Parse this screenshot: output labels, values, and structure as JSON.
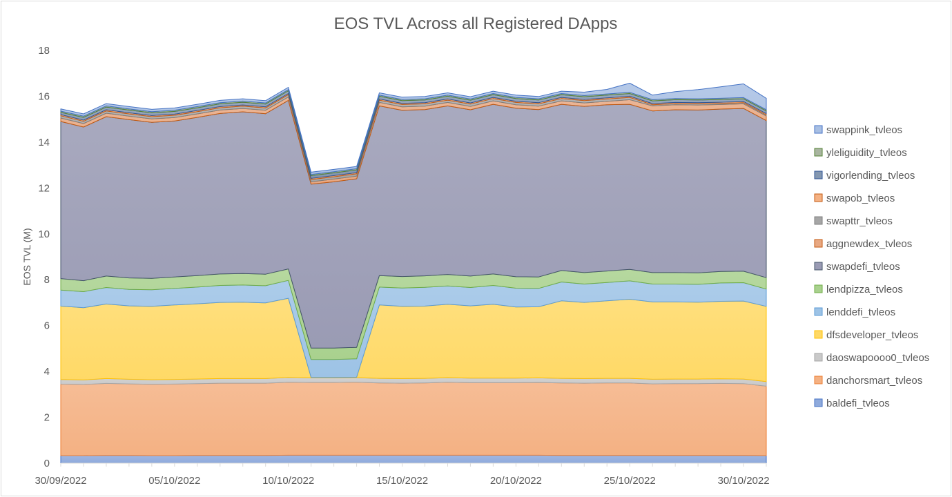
{
  "chart_data": {
    "type": "area",
    "stacked": true,
    "title": "EOS TVL Across all Registered DApps",
    "xlabel": "",
    "ylabel": "EOS TVL (M)",
    "ylim": [
      0,
      18
    ],
    "yticks": [
      "0",
      "2",
      "4",
      "6",
      "8",
      "10",
      "12",
      "14",
      "16",
      "18"
    ],
    "x": [
      "30/09/2022",
      "01/10/2022",
      "02/10/2022",
      "03/10/2022",
      "04/10/2022",
      "05/10/2022",
      "06/10/2022",
      "07/10/2022",
      "08/10/2022",
      "09/10/2022",
      "10/10/2022",
      "11/10/2022",
      "12/10/2022",
      "13/10/2022",
      "14/10/2022",
      "15/10/2022",
      "16/10/2022",
      "17/10/2022",
      "18/10/2022",
      "19/10/2022",
      "20/10/2022",
      "21/10/2022",
      "22/10/2022",
      "23/10/2022",
      "24/10/2022",
      "25/10/2022",
      "26/10/2022",
      "27/10/2022",
      "28/10/2022",
      "29/10/2022",
      "30/10/2022",
      "31/10/2022"
    ],
    "xtick_labels": [
      "30/09/2022",
      "05/10/2022",
      "10/10/2022",
      "15/10/2022",
      "20/10/2022",
      "25/10/2022",
      "30/10/2022"
    ],
    "xtick_indices": [
      0,
      5,
      10,
      15,
      20,
      25,
      30
    ],
    "grid": false,
    "legend_position": "right",
    "series": [
      {
        "name": "baldefi_tvleos",
        "color": "#8faadc",
        "stroke": "#4472c4",
        "values": [
          0.33,
          0.33,
          0.34,
          0.34,
          0.33,
          0.33,
          0.34,
          0.34,
          0.34,
          0.34,
          0.35,
          0.35,
          0.35,
          0.35,
          0.35,
          0.35,
          0.35,
          0.35,
          0.35,
          0.35,
          0.35,
          0.35,
          0.34,
          0.34,
          0.34,
          0.34,
          0.34,
          0.34,
          0.34,
          0.34,
          0.34,
          0.33
        ]
      },
      {
        "name": "danchorsmart_tvleos",
        "color": "#f4b183",
        "stroke": "#ed7d31",
        "values": [
          3.12,
          3.1,
          3.14,
          3.12,
          3.11,
          3.12,
          3.13,
          3.15,
          3.15,
          3.15,
          3.18,
          3.17,
          3.17,
          3.18,
          3.15,
          3.14,
          3.15,
          3.18,
          3.16,
          3.16,
          3.16,
          3.17,
          3.16,
          3.15,
          3.16,
          3.16,
          3.12,
          3.13,
          3.13,
          3.14,
          3.13,
          3.03
        ]
      },
      {
        "name": "daoswapoooo0_tvleos",
        "color": "#c9c9c9",
        "stroke": "#a5a5a5",
        "values": [
          0.2,
          0.2,
          0.21,
          0.2,
          0.2,
          0.2,
          0.2,
          0.2,
          0.2,
          0.2,
          0.21,
          0.2,
          0.2,
          0.2,
          0.2,
          0.2,
          0.2,
          0.2,
          0.2,
          0.2,
          0.2,
          0.2,
          0.2,
          0.2,
          0.2,
          0.2,
          0.2,
          0.2,
          0.2,
          0.2,
          0.2,
          0.2
        ]
      },
      {
        "name": "dfsdeveloper_tvleos",
        "color": "#ffd966",
        "stroke": "#ffc000",
        "values": [
          3.2,
          3.15,
          3.25,
          3.2,
          3.2,
          3.25,
          3.28,
          3.32,
          3.33,
          3.3,
          3.45,
          0.02,
          0.02,
          0.02,
          3.2,
          3.15,
          3.15,
          3.2,
          3.15,
          3.22,
          3.1,
          3.1,
          3.38,
          3.32,
          3.38,
          3.45,
          3.37,
          3.36,
          3.35,
          3.38,
          3.4,
          3.28
        ]
      },
      {
        "name": "lenddefi_tvleos",
        "color": "#9dc3e6",
        "stroke": "#5b9bd5",
        "values": [
          0.7,
          0.7,
          0.72,
          0.72,
          0.72,
          0.72,
          0.73,
          0.74,
          0.75,
          0.75,
          0.78,
          0.78,
          0.78,
          0.8,
          0.78,
          0.8,
          0.82,
          0.8,
          0.8,
          0.82,
          0.82,
          0.8,
          0.82,
          0.8,
          0.8,
          0.8,
          0.78,
          0.78,
          0.78,
          0.8,
          0.8,
          0.75
        ]
      },
      {
        "name": "lendpizza_tvleos",
        "color": "#a9d18e",
        "stroke": "#70ad47",
        "values": [
          0.5,
          0.48,
          0.5,
          0.5,
          0.5,
          0.5,
          0.5,
          0.5,
          0.5,
          0.5,
          0.5,
          0.5,
          0.5,
          0.5,
          0.5,
          0.5,
          0.5,
          0.5,
          0.5,
          0.5,
          0.5,
          0.5,
          0.5,
          0.5,
          0.5,
          0.5,
          0.5,
          0.5,
          0.5,
          0.5,
          0.5,
          0.5
        ]
      },
      {
        "name": "swapdefi_tvleos",
        "color": "#9a9bb4",
        "stroke": "#44546a",
        "values": [
          6.85,
          6.7,
          6.95,
          6.9,
          6.8,
          6.8,
          6.9,
          7.0,
          7.05,
          7.0,
          7.35,
          7.15,
          7.25,
          7.35,
          7.4,
          7.25,
          7.25,
          7.35,
          7.25,
          7.4,
          7.35,
          7.3,
          7.25,
          7.25,
          7.25,
          7.2,
          7.05,
          7.1,
          7.1,
          7.08,
          7.1,
          6.85
        ]
      },
      {
        "name": "aggnewdex_tvleos",
        "color": "#e8a882",
        "stroke": "#c55a11",
        "values": [
          0.15,
          0.15,
          0.15,
          0.15,
          0.15,
          0.15,
          0.15,
          0.15,
          0.15,
          0.15,
          0.15,
          0.1,
          0.12,
          0.12,
          0.15,
          0.15,
          0.15,
          0.15,
          0.15,
          0.15,
          0.15,
          0.15,
          0.15,
          0.15,
          0.15,
          0.2,
          0.22,
          0.22,
          0.22,
          0.2,
          0.2,
          0.2
        ]
      },
      {
        "name": "swapttr_tvleos",
        "color": "#a6a6a6",
        "stroke": "#7f7f7f",
        "values": [
          0.1,
          0.1,
          0.1,
          0.1,
          0.1,
          0.1,
          0.1,
          0.1,
          0.1,
          0.1,
          0.1,
          0.1,
          0.1,
          0.1,
          0.1,
          0.1,
          0.1,
          0.1,
          0.1,
          0.1,
          0.1,
          0.1,
          0.1,
          0.1,
          0.1,
          0.1,
          0.05,
          0.05,
          0.05,
          0.05,
          0.05,
          0.05
        ]
      },
      {
        "name": "swapob_tvleos",
        "color": "#f4b183",
        "stroke": "#c55a11",
        "values": [
          0.05,
          0.05,
          0.05,
          0.05,
          0.05,
          0.05,
          0.05,
          0.05,
          0.05,
          0.05,
          0.05,
          0.05,
          0.05,
          0.05,
          0.05,
          0.05,
          0.05,
          0.05,
          0.05,
          0.05,
          0.05,
          0.05,
          0.05,
          0.05,
          0.05,
          0.05,
          0.05,
          0.05,
          0.05,
          0.05,
          0.05,
          0.05
        ]
      },
      {
        "name": "vigorlending_tvleos",
        "color": "#8497b0",
        "stroke": "#2f5597",
        "values": [
          0.1,
          0.12,
          0.12,
          0.12,
          0.12,
          0.12,
          0.12,
          0.12,
          0.12,
          0.12,
          0.12,
          0.12,
          0.12,
          0.12,
          0.12,
          0.12,
          0.12,
          0.12,
          0.12,
          0.12,
          0.12,
          0.12,
          0.12,
          0.12,
          0.12,
          0.12,
          0.12,
          0.12,
          0.12,
          0.12,
          0.12,
          0.12
        ]
      },
      {
        "name": "yleliguidity_tvleos",
        "color": "#a9b5a0",
        "stroke": "#548235",
        "values": [
          0.05,
          0.05,
          0.05,
          0.05,
          0.05,
          0.05,
          0.05,
          0.05,
          0.05,
          0.05,
          0.05,
          0.05,
          0.05,
          0.05,
          0.05,
          0.05,
          0.05,
          0.05,
          0.05,
          0.05,
          0.05,
          0.05,
          0.05,
          0.05,
          0.05,
          0.05,
          0.05,
          0.05,
          0.05,
          0.05,
          0.05,
          0.05
        ]
      },
      {
        "name": "swappink_tvleos",
        "color": "#a8bfe3",
        "stroke": "#4472c4",
        "values": [
          0.1,
          0.1,
          0.1,
          0.1,
          0.1,
          0.1,
          0.1,
          0.1,
          0.1,
          0.1,
          0.1,
          0.1,
          0.1,
          0.1,
          0.1,
          0.1,
          0.1,
          0.1,
          0.1,
          0.1,
          0.1,
          0.1,
          0.1,
          0.15,
          0.2,
          0.4,
          0.2,
          0.3,
          0.4,
          0.5,
          0.6,
          0.5
        ]
      }
    ]
  }
}
